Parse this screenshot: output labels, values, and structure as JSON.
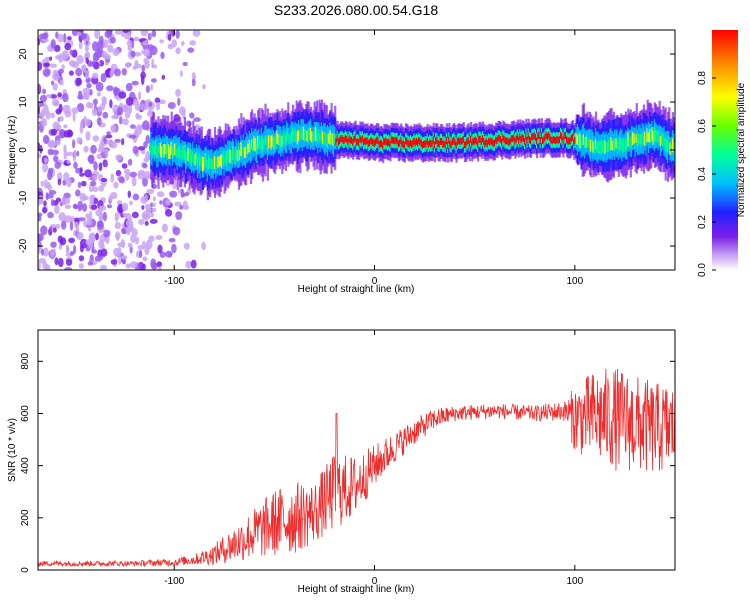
{
  "title": "S233.2026.080.00.54.G18",
  "chart_data": [
    {
      "type": "heatmap",
      "title": "S233.2026.080.00.54.G18",
      "xlabel": "Height of straight line (km)",
      "ylabel": "Frequency (Hz)",
      "xlim": [
        -168,
        150
      ],
      "ylim": [
        -25,
        25
      ],
      "x_ticks": [
        -100,
        0,
        100
      ],
      "y_ticks": [
        -20,
        -10,
        0,
        10,
        20
      ],
      "colorbar": {
        "label": "Normalized spectral amplitude",
        "range": [
          0,
          1
        ],
        "ticks": [
          0.0,
          0.2,
          0.4,
          0.6,
          0.8
        ],
        "colormap": [
          "#ffffff",
          "#c9a3f5",
          "#7a1fe8",
          "#2020ff",
          "#00bfff",
          "#00ff99",
          "#66ff00",
          "#ffff00",
          "#ff8800",
          "#ff0000"
        ]
      },
      "ridge": {
        "x": [
          -110,
          -100,
          -90,
          -80,
          -70,
          -60,
          -50,
          -40,
          -30,
          -20,
          -10,
          0,
          20,
          40,
          60,
          80,
          95,
          100,
          110,
          120,
          130,
          140,
          150
        ],
        "freq": [
          0,
          0,
          -2,
          -3,
          -1,
          1,
          2,
          3,
          3,
          2,
          2,
          1.5,
          1.5,
          1.5,
          2,
          2.5,
          2.5,
          2,
          1,
          1,
          2,
          3,
          0
        ]
      },
      "noise_region": [
        -168,
        -85
      ]
    },
    {
      "type": "line",
      "xlabel": "Height of straight line (km)",
      "ylabel": "SNR (10 * v/v)",
      "xlim": [
        -168,
        150
      ],
      "ylim": [
        0,
        920
      ],
      "x_ticks": [
        -100,
        0,
        100
      ],
      "y_ticks": [
        0,
        200,
        400,
        600,
        800
      ],
      "color": "#ef2b2b",
      "envelope": {
        "x": [
          -168,
          -120,
          -100,
          -90,
          -80,
          -70,
          -60,
          -50,
          -40,
          -30,
          -20,
          -10,
          0,
          10,
          20,
          30,
          40,
          60,
          80,
          95,
          100,
          110,
          120,
          130,
          140,
          150
        ],
        "mean": [
          25,
          25,
          30,
          40,
          60,
          100,
          140,
          180,
          200,
          220,
          300,
          320,
          400,
          470,
          530,
          580,
          600,
          610,
          600,
          610,
          580,
          590,
          580,
          560,
          540,
          550
        ],
        "amp": [
          10,
          10,
          15,
          20,
          40,
          70,
          100,
          130,
          140,
          120,
          150,
          120,
          80,
          60,
          50,
          40,
          30,
          30,
          30,
          40,
          130,
          180,
          200,
          190,
          180,
          170
        ]
      }
    }
  ]
}
